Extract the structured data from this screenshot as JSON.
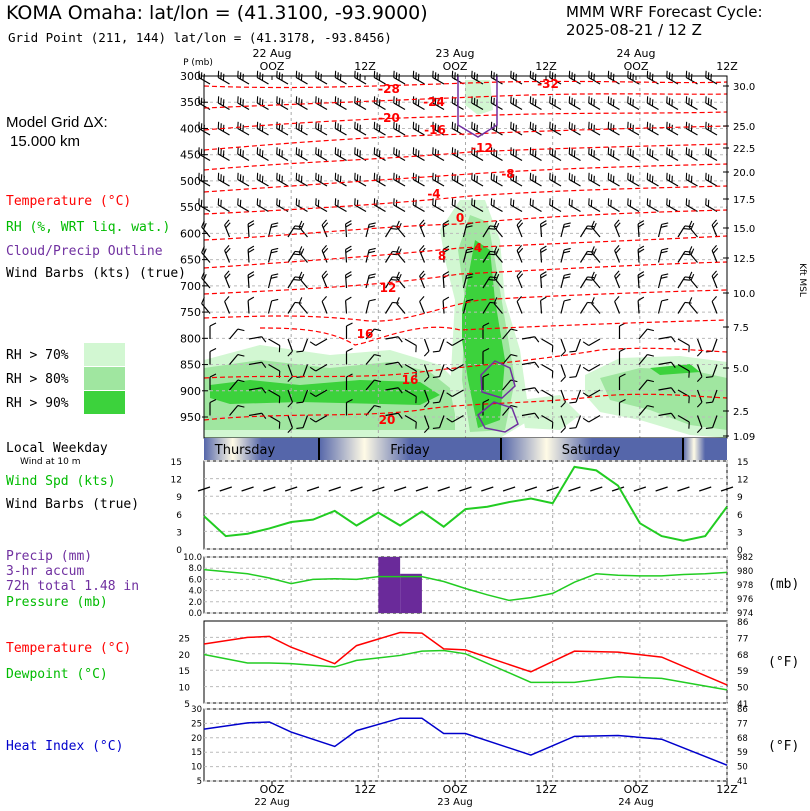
{
  "header": {
    "title": "KOMA Omaha:  lat/lon = (41.3100, -93.9000)",
    "grid_point": "Grid Point (211, 144) lat/lon = (41.3178, -93.8456)",
    "cycle_label": "MMM WRF Forecast Cycle:",
    "cycle_value": "2025-08-21 / 12  Z",
    "grid_dx_label": "Model Grid ΔX:",
    "grid_dx_value": "15.000 km"
  },
  "legend": {
    "temperature": "Temperature (°C)",
    "rh": "RH (%, WRT liq. wat.)",
    "cloud": "Cloud/Precip Outline",
    "wind": "Wind Barbs (kts) (true)",
    "rh70": "RH > 70%",
    "rh80": "RH > 80%",
    "rh90": "RH > 90%"
  },
  "colors": {
    "temperature": "#ff0000",
    "rh": "#00cc00",
    "cloud": "#7030a0",
    "heat_index": "#0000cc",
    "rh70": "#d2f7d2",
    "rh80": "#a0e6a0",
    "rh90": "#3cd23c"
  },
  "time_axis": {
    "top_dates": [
      "22 Aug",
      "23 Aug",
      "24 Aug"
    ],
    "top_ticks": [
      "OOZ",
      "12Z",
      "OOZ",
      "12Z",
      "OOZ",
      "12Z"
    ],
    "bottom_ticks": [
      "OOZ",
      "12Z",
      "OOZ",
      "12Z",
      "OOZ",
      "12Z"
    ],
    "bottom_dates": [
      "22 Aug",
      "23 Aug",
      "24 Aug"
    ]
  },
  "weekday_bar": {
    "label": "Local Weekday",
    "sublabel": "Wind at 10 m",
    "days": [
      "Thursday",
      "Friday",
      "Saturday"
    ]
  },
  "chart_data": [
    {
      "type": "heatmap",
      "name": "sounding",
      "ylabel": "P (mb)",
      "y_ticks": [
        300,
        350,
        400,
        450,
        500,
        550,
        600,
        650,
        700,
        750,
        800,
        850,
        900,
        950
      ],
      "right_label": "Kft MSL",
      "right_ticks": [
        "30.0",
        "25.0",
        "22.5",
        "20.0",
        "17.5",
        "15.0",
        "12.5",
        "10.0",
        "7.5",
        "5.0",
        "2.5",
        "1.09"
      ],
      "temperature_labels": [
        "-32",
        "-28",
        "-24",
        "-20",
        "-16",
        "-12",
        "-8",
        "-4",
        "0",
        "4",
        "8",
        "12",
        "16",
        "16",
        "20"
      ]
    },
    {
      "type": "line",
      "name": "wind_speed",
      "label1": "Wind Spd (kts)",
      "label2": "Wind Barbs (true)",
      "ylim": [
        0,
        15
      ],
      "y_ticks": [
        "0",
        "3",
        "6",
        "9",
        "12",
        "15"
      ],
      "x": [
        0,
        3,
        6,
        9,
        12,
        15,
        18,
        21,
        24,
        27,
        30,
        33,
        36,
        39,
        42,
        45,
        48,
        51,
        54,
        57,
        60,
        63,
        66,
        69,
        72
      ],
      "values": [
        5.6,
        2.2,
        2.6,
        3.5,
        4.6,
        5.0,
        6.5,
        4.0,
        6.2,
        4.0,
        6.4,
        3.8,
        6.8,
        7.2,
        8.0,
        8.6,
        7.8,
        14.0,
        13.4,
        10.8,
        4.4,
        2.2,
        1.4,
        2.2,
        7.2
      ]
    },
    {
      "type": "line",
      "name": "precip_pressure",
      "label1": "Precip (mm)",
      "label2": "3-hr accum",
      "label3": "72h total 1.48 in",
      "label4": "Pressure (mb)",
      "right_unit": "(mb)",
      "y_ticks_left": [
        "0.0",
        "2.0",
        "4.0",
        "6.0",
        "8.0",
        "10.0"
      ],
      "y_ticks_right": [
        "974",
        "976",
        "978",
        "980",
        "982"
      ],
      "precip_x": [
        24,
        27
      ],
      "precip_values": [
        10.0,
        7.0
      ],
      "pressure_x": [
        0,
        6,
        9,
        12,
        15,
        18,
        21,
        24,
        30,
        33,
        36,
        39,
        42,
        45,
        48,
        51,
        54,
        57,
        60,
        63,
        66,
        69,
        72
      ],
      "pressure_values": [
        980.2,
        979.6,
        979.0,
        978.2,
        978.8,
        978.9,
        978.8,
        979.2,
        979.2,
        978.5,
        977.5,
        976.6,
        975.8,
        976.2,
        976.8,
        978.4,
        979.6,
        979.4,
        979.3,
        979.3,
        979.5,
        979.6,
        979.8
      ]
    },
    {
      "type": "line",
      "name": "temperature_dewpoint",
      "label1": "Temperature (°C)",
      "label2": "Dewpoint (°C)",
      "right_unit": "(°F)",
      "y_ticks_left": [
        "5",
        "10",
        "15",
        "20",
        "25"
      ],
      "y_ticks_right": [
        "41",
        "50",
        "59",
        "68",
        "77",
        "86"
      ],
      "x": [
        0,
        6,
        9,
        12,
        18,
        21,
        27,
        30,
        33,
        36,
        45,
        51,
        57,
        63,
        72
      ],
      "temperature": [
        23.0,
        25.0,
        25.3,
        22.0,
        17.0,
        22.5,
        26.5,
        26.3,
        21.5,
        21.2,
        14.5,
        20.8,
        20.5,
        19.0,
        10.5
      ],
      "dewpoint": [
        19.8,
        17.2,
        17.2,
        17.0,
        16.0,
        18.0,
        19.5,
        20.8,
        21.0,
        20.0,
        11.3,
        11.3,
        13.0,
        12.5,
        9.0
      ]
    },
    {
      "type": "line",
      "name": "heat_index",
      "label1": "Heat Index (°C)",
      "right_unit": "(°F)",
      "y_ticks_left": [
        "5",
        "10",
        "15",
        "20",
        "25",
        "30"
      ],
      "y_ticks_right": [
        "41",
        "50",
        "59",
        "68",
        "77",
        "86"
      ],
      "x": [
        0,
        6,
        9,
        12,
        18,
        21,
        27,
        30,
        33,
        36,
        45,
        51,
        57,
        63,
        72
      ],
      "values": [
        23.0,
        25.2,
        25.5,
        22.0,
        17.0,
        22.5,
        26.8,
        26.8,
        21.5,
        21.5,
        14.0,
        20.5,
        20.8,
        19.5,
        10.5
      ]
    }
  ]
}
